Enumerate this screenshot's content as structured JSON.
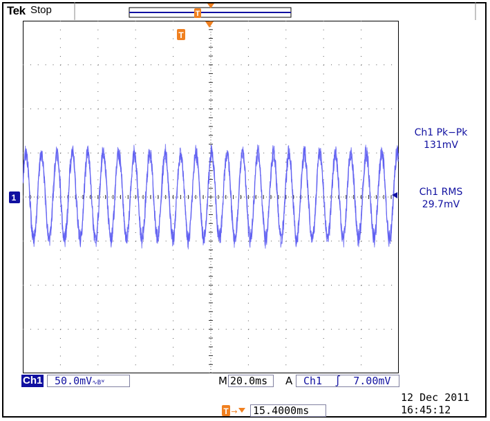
{
  "header": {
    "brand": "Tek",
    "status": "Stop"
  },
  "measurements": [
    {
      "label": "Ch1 Pk−Pk",
      "value": "131mV"
    },
    {
      "label": "Ch1 RMS",
      "value": "29.7mV"
    }
  ],
  "channel": {
    "name": "Ch1",
    "marker": "1",
    "volts_per_div": "50.0mV",
    "coupling_symbol": "∿Bᵂ"
  },
  "timebase": {
    "prefix": "M",
    "value": "20.0ms"
  },
  "trigger": {
    "prefix": "A",
    "source": "Ch1",
    "slope_symbol": "∫",
    "level": "7.00mV",
    "marker": "T",
    "position": "15.4000ms"
  },
  "datetime": {
    "date": "12 Dec 2011",
    "time": "16:45:12"
  },
  "colors": {
    "trace": "#5a5af0",
    "trigger": "#f08020",
    "readout": "#1010a0"
  }
}
